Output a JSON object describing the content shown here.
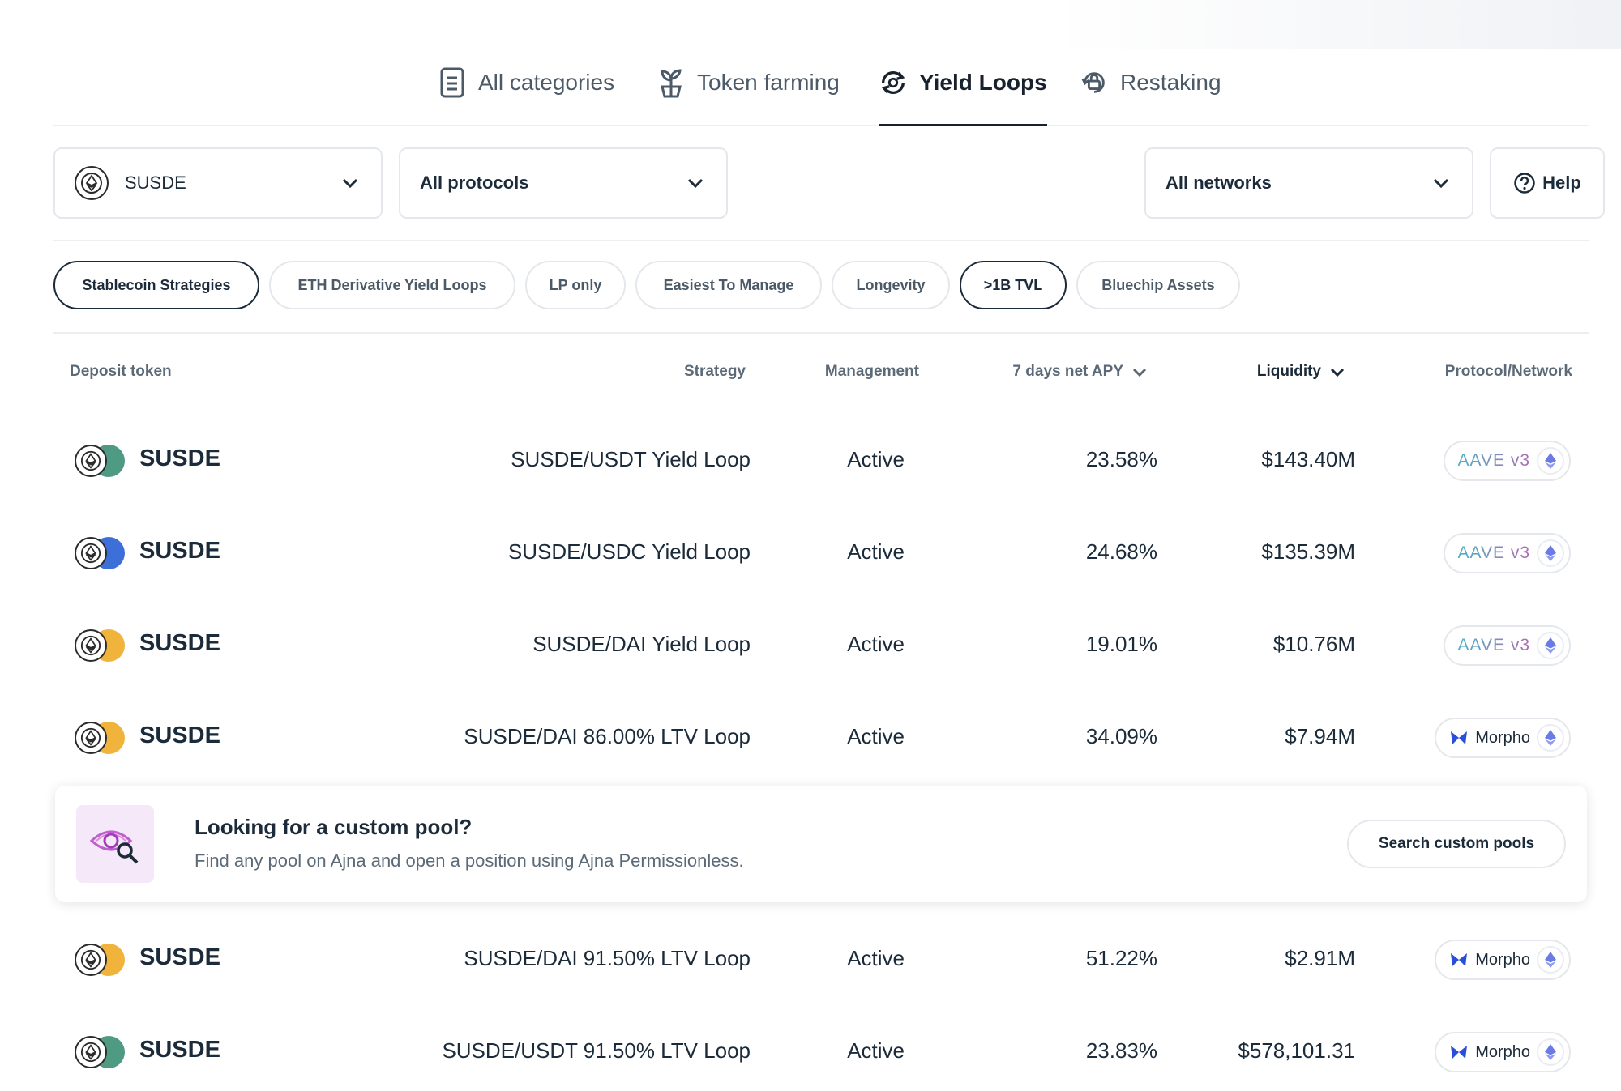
{
  "tabs": [
    {
      "label": "All categories",
      "icon": "document-icon"
    },
    {
      "label": "Token farming",
      "icon": "plant-icon"
    },
    {
      "label": "Yield Loops",
      "icon": "loop-icon",
      "active": true
    },
    {
      "label": "Restaking",
      "icon": "lock-cycle-icon"
    }
  ],
  "filters": {
    "token": "SUSDE",
    "protocols": "All protocols",
    "networks": "All networks",
    "help": "Help"
  },
  "pills": [
    {
      "label": "Stablecoin Strategies",
      "active": true
    },
    {
      "label": "ETH Derivative Yield Loops",
      "active": false
    },
    {
      "label": "LP only",
      "active": false
    },
    {
      "label": "Easiest To Manage",
      "active": false
    },
    {
      "label": "Longevity",
      "active": false
    },
    {
      "label": ">1B TVL",
      "active": true
    },
    {
      "label": "Bluechip Assets",
      "active": false
    }
  ],
  "table": {
    "headers": {
      "deposit_token": "Deposit token",
      "strategy": "Strategy",
      "management": "Management",
      "apy": "7 days net APY",
      "liquidity": "Liquidity",
      "protocol_network": "Protocol/Network"
    },
    "rows": [
      {
        "token": "SUSDE",
        "pair_color": "#4e9a82",
        "strategy": "SUSDE/USDT Yield Loop",
        "management": "Active",
        "apy": "23.58%",
        "liquidity": "$143.40M",
        "protocol": "AAVE v3"
      },
      {
        "token": "SUSDE",
        "pair_color": "#3d6fd9",
        "strategy": "SUSDE/USDC Yield Loop",
        "management": "Active",
        "apy": "24.68%",
        "liquidity": "$135.39M",
        "protocol": "AAVE v3"
      },
      {
        "token": "SUSDE",
        "pair_color": "#f0b43c",
        "strategy": "SUSDE/DAI Yield Loop",
        "management": "Active",
        "apy": "19.01%",
        "liquidity": "$10.76M",
        "protocol": "AAVE v3"
      },
      {
        "token": "SUSDE",
        "pair_color": "#f0b43c",
        "strategy": "SUSDE/DAI 86.00% LTV Loop",
        "management": "Active",
        "apy": "34.09%",
        "liquidity": "$7.94M",
        "protocol": "Morpho"
      },
      {
        "token": "SUSDE",
        "pair_color": "#f0b43c",
        "strategy": "SUSDE/DAI 91.50% LTV Loop",
        "management": "Active",
        "apy": "51.22%",
        "liquidity": "$2.91M",
        "protocol": "Morpho"
      },
      {
        "token": "SUSDE",
        "pair_color": "#4e9a82",
        "strategy": "SUSDE/USDT 91.50% LTV Loop",
        "management": "Active",
        "apy": "23.83%",
        "liquidity": "$578,101.31",
        "protocol": "Morpho"
      }
    ]
  },
  "banner": {
    "title": "Looking for a custom pool?",
    "subtitle": "Find any pool on Ajna and open a position using Ajna Permissionless.",
    "button": "Search custom pools"
  }
}
